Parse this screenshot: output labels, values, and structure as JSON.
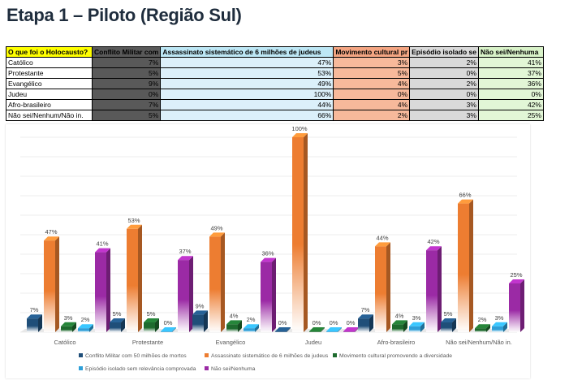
{
  "title": "Etapa 1 – Piloto (Região Sul)",
  "table": {
    "header": [
      "O que foi o Holocausto?",
      "Conflito Militar com",
      "Assassinato sistemático de 6 milhões de judeus",
      "Movimento cultural pr",
      "Episódio isolado se",
      "Não sei/Nenhuma"
    ],
    "rows": [
      [
        "Católico",
        "7%",
        "47%",
        "3%",
        "2%",
        "41%"
      ],
      [
        "Protestante",
        "5%",
        "53%",
        "5%",
        "0%",
        "37%"
      ],
      [
        "Evangélico",
        "9%",
        "49%",
        "4%",
        "2%",
        "36%"
      ],
      [
        "Judeu",
        "0%",
        "100%",
        "0%",
        "0%",
        "0%"
      ],
      [
        "Afro-brasileiro",
        "7%",
        "44%",
        "4%",
        "3%",
        "42%"
      ],
      [
        "Não sei/Nenhum/Não in.",
        "5%",
        "66%",
        "2%",
        "3%",
        "25%"
      ]
    ]
  },
  "chart_data": {
    "type": "bar",
    "categories": [
      "Católico",
      "Protestante",
      "Evangélico",
      "Judeu",
      "Afro-brasileiro",
      "Não sei/Nenhum/Não in."
    ],
    "series": [
      {
        "name": "Conflito Militar com 50 milhões de mortos",
        "values": [
          7,
          5,
          9,
          0,
          7,
          5
        ],
        "color": "#1f4e79"
      },
      {
        "name": "Assassinato sistemático de 6 milhões de judeus",
        "values": [
          47,
          53,
          49,
          100,
          44,
          66
        ],
        "color": "#ed7d31"
      },
      {
        "name": "Movimento cultural promovendo a diversidade",
        "values": [
          3,
          5,
          4,
          0,
          4,
          2
        ],
        "color": "#1e6b2e"
      },
      {
        "name": "Episódio isolado sem relevância comprovada",
        "values": [
          2,
          0,
          2,
          0,
          3,
          3
        ],
        "color": "#2e9fd8"
      },
      {
        "name": "Não sei/Nenhuma",
        "values": [
          41,
          37,
          36,
          0,
          42,
          25
        ],
        "color": "#9b2aa5"
      }
    ],
    "ylim": [
      0,
      100
    ],
    "unit": "%",
    "grid": true,
    "legend_position": "bottom"
  }
}
